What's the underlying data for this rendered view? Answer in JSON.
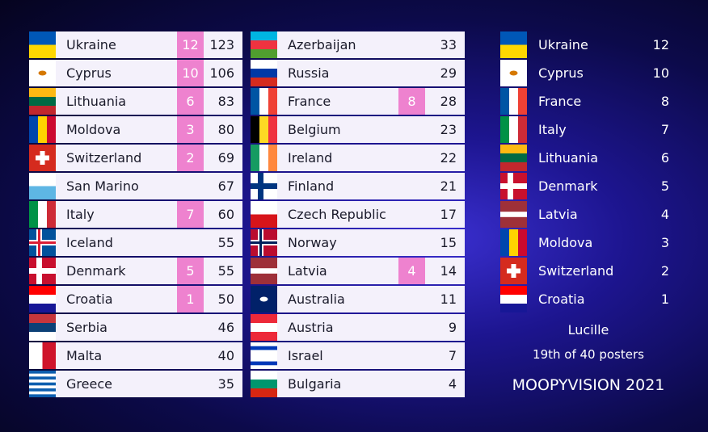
{
  "scoreboard": {
    "columns": [
      {
        "rows": [
          {
            "country": "Ukraine",
            "points": 12,
            "total": 123
          },
          {
            "country": "Cyprus",
            "points": 10,
            "total": 106
          },
          {
            "country": "Lithuania",
            "points": 6,
            "total": 83
          },
          {
            "country": "Moldova",
            "points": 3,
            "total": 80
          },
          {
            "country": "Switzerland",
            "points": 2,
            "total": 69
          },
          {
            "country": "San Marino",
            "total": 67
          },
          {
            "country": "Italy",
            "points": 7,
            "total": 60
          },
          {
            "country": "Iceland",
            "total": 55
          },
          {
            "country": "Denmark",
            "points": 5,
            "total": 55
          },
          {
            "country": "Croatia",
            "points": 1,
            "total": 50
          },
          {
            "country": "Serbia",
            "total": 46
          },
          {
            "country": "Malta",
            "total": 40
          },
          {
            "country": "Greece",
            "total": 35
          }
        ]
      },
      {
        "rows": [
          {
            "country": "Azerbaijan",
            "total": 33
          },
          {
            "country": "Russia",
            "total": 29
          },
          {
            "country": "France",
            "points": 8,
            "total": 28
          },
          {
            "country": "Belgium",
            "total": 23
          },
          {
            "country": "Ireland",
            "total": 22
          },
          {
            "country": "Finland",
            "total": 21
          },
          {
            "country": "Czech Republic",
            "total": 17
          },
          {
            "country": "Norway",
            "total": 15
          },
          {
            "country": "Latvia",
            "points": 4,
            "total": 14
          },
          {
            "country": "Australia",
            "total": 11
          },
          {
            "country": "Austria",
            "total": 9
          },
          {
            "country": "Israel",
            "total": 7
          },
          {
            "country": "Bulgaria",
            "total": 4
          }
        ]
      }
    ]
  },
  "voter": {
    "rows": [
      {
        "country": "Ukraine",
        "points": 12
      },
      {
        "country": "Cyprus",
        "points": 10
      },
      {
        "country": "France",
        "points": 8
      },
      {
        "country": "Italy",
        "points": 7
      },
      {
        "country": "Lithuania",
        "points": 6
      },
      {
        "country": "Denmark",
        "points": 5
      },
      {
        "country": "Latvia",
        "points": 4
      },
      {
        "country": "Moldova",
        "points": 3
      },
      {
        "country": "Switzerland",
        "points": 2
      },
      {
        "country": "Croatia",
        "points": 1
      }
    ],
    "name": "Lucille",
    "rank": "19th of 40 posters",
    "show": "MOOPYVISION 2021"
  }
}
